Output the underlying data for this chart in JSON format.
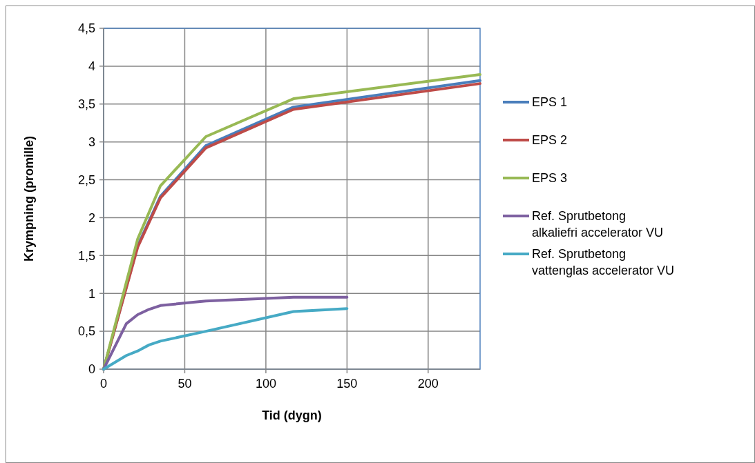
{
  "chart_data": {
    "type": "line",
    "xlabel": "Tid (dygn)",
    "ylabel": "Krympning (promille)",
    "xlim": [
      0,
      232
    ],
    "xticks": [
      0,
      50,
      100,
      150,
      200
    ],
    "ylim": [
      0,
      4.5
    ],
    "yticks": [
      0,
      {
        "value": 0.5,
        "label": "0,5"
      },
      1,
      {
        "value": 1.5,
        "label": "1,5"
      },
      2,
      {
        "value": 2.5,
        "label": "2,5"
      },
      3,
      {
        "value": 3.5,
        "label": "3,5"
      },
      4,
      {
        "value": 4.5,
        "label": "4,5"
      }
    ],
    "grid": true,
    "legend": "right",
    "marker": "none",
    "line_style": "solid",
    "series": [
      {
        "name": "EPS 1",
        "color": "#4a7ebb",
        "x": [
          0,
          21,
          35,
          63,
          117,
          232
        ],
        "values": [
          0,
          1.63,
          2.28,
          2.95,
          3.46,
          3.81
        ]
      },
      {
        "name": "EPS 2",
        "color": "#be4b48",
        "x": [
          0,
          21,
          35,
          63,
          117,
          232
        ],
        "values": [
          0,
          1.61,
          2.26,
          2.92,
          3.43,
          3.77
        ]
      },
      {
        "name": "EPS 3",
        "color": "#98b954",
        "x": [
          0,
          21,
          35,
          63,
          117,
          232
        ],
        "values": [
          0,
          1.72,
          2.42,
          3.07,
          3.57,
          3.89
        ]
      },
      {
        "name": "Ref. Sprutbetong alkaliefri accelerator VU",
        "color": "#7d60a0",
        "x": [
          0,
          14,
          21,
          28,
          35,
          63,
          117,
          150
        ],
        "values": [
          0,
          0.6,
          0.72,
          0.79,
          0.84,
          0.9,
          0.95,
          0.95
        ]
      },
      {
        "name": "Ref. Sprutbetong vattenglas accelerator VU",
        "color": "#46aac5",
        "x": [
          0,
          14,
          21,
          28,
          35,
          63,
          117,
          150
        ],
        "values": [
          0,
          0.18,
          0.24,
          0.32,
          0.37,
          0.5,
          0.76,
          0.8
        ]
      }
    ]
  }
}
